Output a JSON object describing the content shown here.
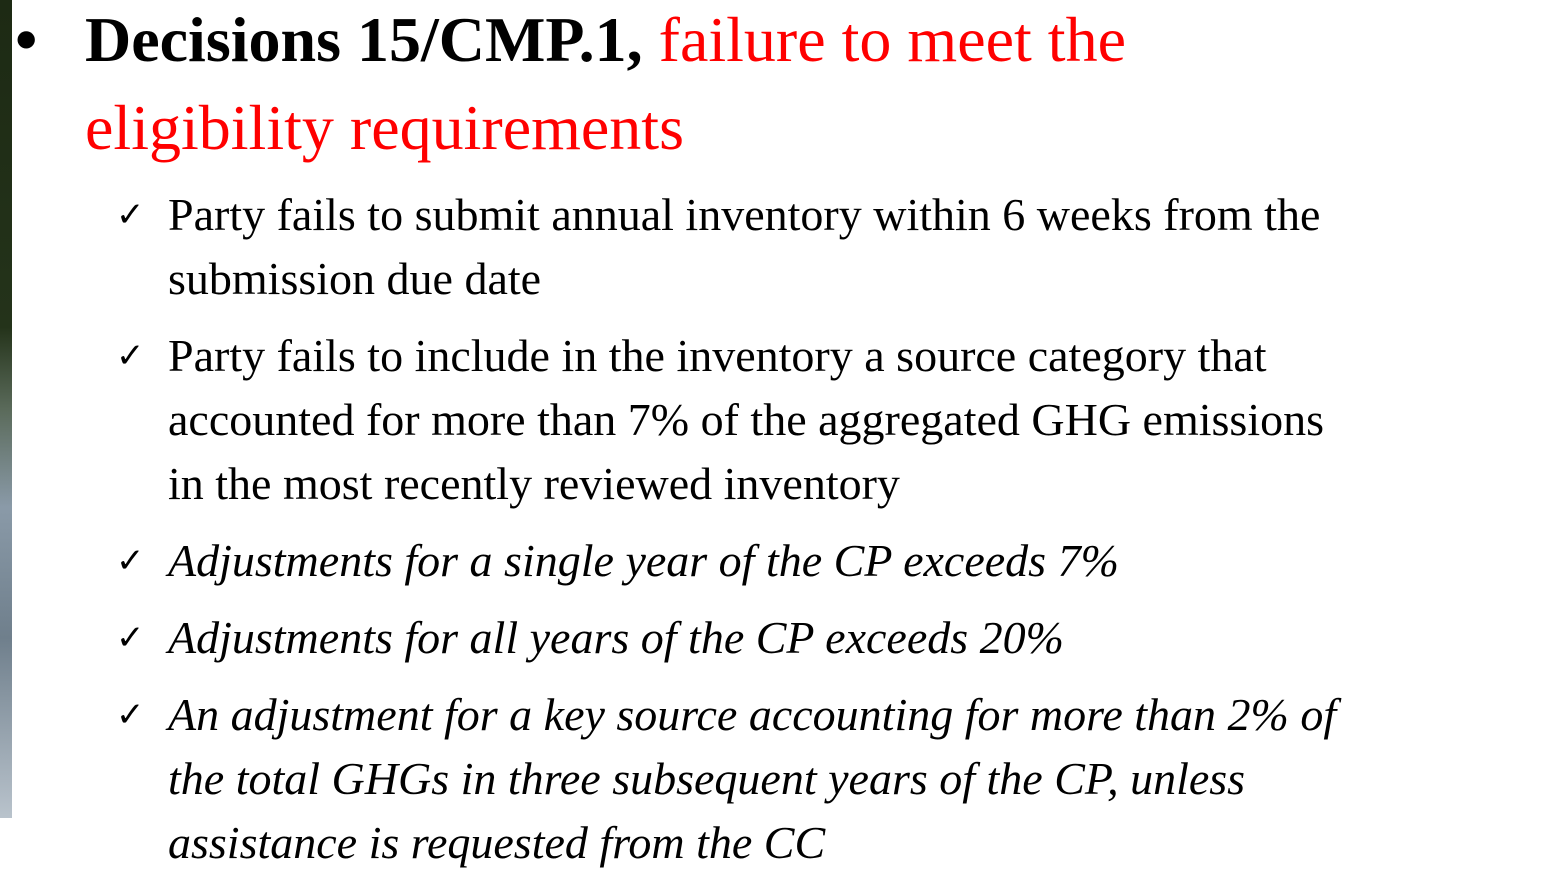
{
  "heading": {
    "bold": "Decisions 15/CMP.1,",
    "red_lines": [
      "failure to meet the",
      "eligibility requirements"
    ]
  },
  "items": [
    {
      "style": "normal",
      "lines": [
        "Party fails to submit annual inventory within 6 weeks from the",
        "submission due date"
      ]
    },
    {
      "style": "normal",
      "lines": [
        "Party fails to include in the inventory a source category  that",
        "accounted for more than 7% of the aggregated GHG emissions",
        "in the most recently reviewed inventory"
      ]
    },
    {
      "style": "italic",
      "lines": [
        "Adjustments for a single year of the CP exceeds 7%"
      ]
    },
    {
      "style": "italic",
      "lines": [
        "Adjustments for all years of the CP exceeds 20%"
      ]
    },
    {
      "style": "italic",
      "lines": [
        "An adjustment for a key source accounting for more than 2% of",
        "the total GHGs in three subsequent years of the CP, unless",
        "assistance is requested from the CC"
      ]
    }
  ]
}
